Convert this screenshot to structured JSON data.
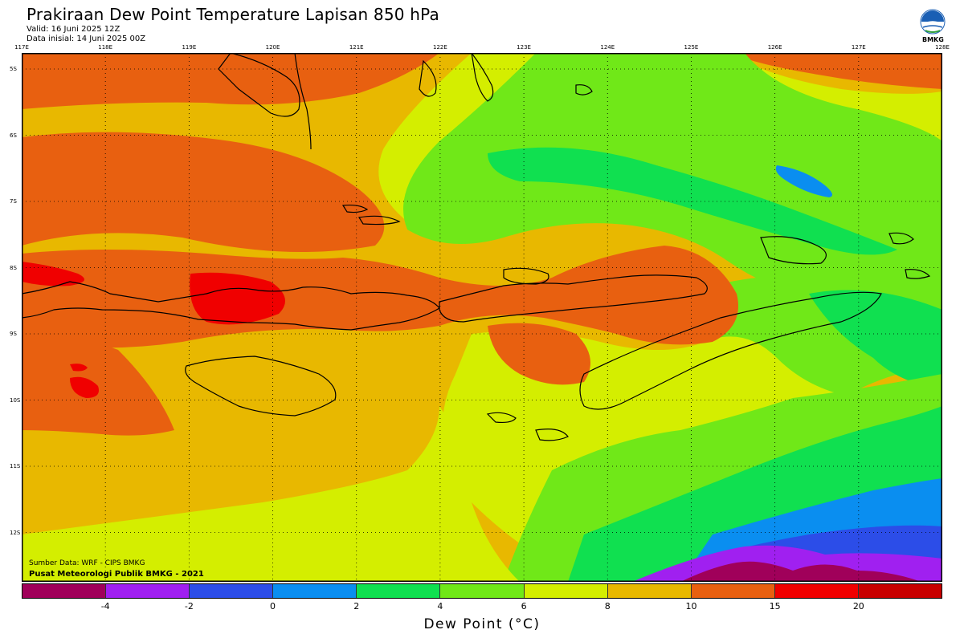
{
  "title": "Prakiraan Dew Point Temperature Lapisan 850 hPa",
  "valid": "Valid: 16 Juni 2025 12Z",
  "initial": "Data inisial: 14 Juni 2025 00Z",
  "logo_text": "BMKG",
  "lon_labels": [
    "117E",
    "118E",
    "119E",
    "120E",
    "121E",
    "122E",
    "123E",
    "124E",
    "125E",
    "126E",
    "127E",
    "128E"
  ],
  "lat_labels": [
    "5S",
    "6S",
    "7S",
    "8S",
    "9S",
    "10S",
    "11S",
    "12S"
  ],
  "source": "Sumber Data: WRF - CIPS BMKG",
  "center": "Pusat Meteorologi Publik BMKG - 2021",
  "colorbar": {
    "title": "Dew Point (°C)",
    "ticks": [
      "-4",
      "-2",
      "0",
      "2",
      "4",
      "6",
      "8",
      "10",
      "15",
      "20"
    ],
    "colors": [
      "#a0005a",
      "#a020f0",
      "#2c4de8",
      "#0a8ef0",
      "#10e050",
      "#70e818",
      "#d4ee00",
      "#e8b800",
      "#e86010",
      "#f00000",
      "#c80000"
    ]
  },
  "field_colors": {
    "c15": "#e86010",
    "c20": "#f00000",
    "c10": "#e8b800",
    "c8": "#d4ee00",
    "c6": "#70e818",
    "c4": "#10e050",
    "c2": "#0a8ef0",
    "c0": "#2c4de8",
    "cm2": "#a020f0",
    "cm4": "#a0005a"
  }
}
